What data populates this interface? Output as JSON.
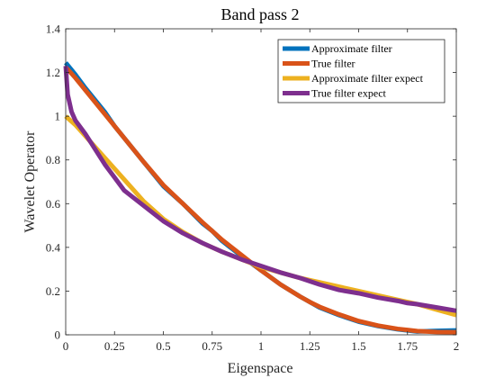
{
  "chart_data": {
    "type": "line",
    "title": "Band pass 2",
    "xlabel": "Eigenspace",
    "ylabel": "Wavelet Operator",
    "xlim": [
      0,
      2
    ],
    "ylim": [
      0,
      1.4
    ],
    "xticks": [
      0,
      0.25,
      0.5,
      0.75,
      1,
      1.25,
      1.5,
      1.75,
      2
    ],
    "xtick_labels": [
      "0",
      "0.25",
      "0.5",
      "0.75",
      "1",
      "1.25",
      "1.5",
      "1.75",
      "2"
    ],
    "yticks": [
      0,
      0.2,
      0.4,
      0.6,
      0.8,
      1,
      1.2,
      1.4
    ],
    "ytick_labels": [
      "0",
      "0.2",
      "0.4",
      "0.6",
      "0.8",
      "1",
      "1.2",
      "1.4"
    ],
    "grid": false,
    "legend_position": "top-right",
    "series": [
      {
        "name": "Approximate filter",
        "color": "#0072BD",
        "x": [
          0,
          0.05,
          0.1,
          0.2,
          0.25,
          0.3,
          0.4,
          0.5,
          0.6,
          0.7,
          0.75,
          0.8,
          0.9,
          1.0,
          1.1,
          1.2,
          1.25,
          1.3,
          1.4,
          1.5,
          1.6,
          1.7,
          1.75,
          1.8,
          1.9,
          2.0
        ],
        "y": [
          1.245,
          1.19,
          1.13,
          1.02,
          0.955,
          0.9,
          0.79,
          0.68,
          0.6,
          0.51,
          0.475,
          0.43,
          0.36,
          0.295,
          0.23,
          0.175,
          0.15,
          0.125,
          0.09,
          0.06,
          0.04,
          0.025,
          0.02,
          0.015,
          0.018,
          0.02
        ]
      },
      {
        "name": "True filter",
        "color": "#D95319",
        "x": [
          0,
          0.05,
          0.1,
          0.2,
          0.25,
          0.3,
          0.4,
          0.5,
          0.6,
          0.7,
          0.75,
          0.8,
          0.9,
          1.0,
          1.1,
          1.2,
          1.25,
          1.3,
          1.4,
          1.5,
          1.6,
          1.7,
          1.75,
          1.8,
          1.9,
          2.0
        ],
        "y": [
          1.225,
          1.175,
          1.12,
          1.01,
          0.955,
          0.9,
          0.79,
          0.685,
          0.6,
          0.515,
          0.475,
          0.435,
          0.365,
          0.295,
          0.23,
          0.175,
          0.15,
          0.128,
          0.093,
          0.063,
          0.042,
          0.027,
          0.022,
          0.017,
          0.013,
          0.012
        ]
      },
      {
        "name": "Approximate filter expect",
        "color": "#EDB120",
        "x": [
          0,
          0.05,
          0.1,
          0.2,
          0.25,
          0.3,
          0.4,
          0.5,
          0.6,
          0.7,
          0.75,
          0.8,
          0.9,
          1.0,
          1.1,
          1.2,
          1.25,
          1.3,
          1.4,
          1.5,
          1.6,
          1.7,
          1.75,
          1.8,
          1.9,
          2.0
        ],
        "y": [
          1.0,
          0.96,
          0.91,
          0.81,
          0.76,
          0.71,
          0.61,
          0.53,
          0.47,
          0.42,
          0.4,
          0.38,
          0.345,
          0.31,
          0.285,
          0.26,
          0.25,
          0.24,
          0.22,
          0.2,
          0.18,
          0.16,
          0.15,
          0.14,
          0.115,
          0.09
        ]
      },
      {
        "name": "True filter expect",
        "color": "#7E2F8E",
        "x": [
          0,
          0.01,
          0.03,
          0.05,
          0.1,
          0.15,
          0.2,
          0.25,
          0.3,
          0.4,
          0.5,
          0.6,
          0.7,
          0.75,
          0.8,
          0.9,
          1.0,
          1.1,
          1.2,
          1.25,
          1.3,
          1.4,
          1.5,
          1.6,
          1.7,
          1.75,
          1.8,
          1.9,
          2.0
        ],
        "y": [
          1.23,
          1.1,
          1.02,
          0.98,
          0.92,
          0.85,
          0.78,
          0.72,
          0.66,
          0.59,
          0.52,
          0.465,
          0.42,
          0.4,
          0.38,
          0.345,
          0.315,
          0.285,
          0.26,
          0.245,
          0.23,
          0.205,
          0.19,
          0.17,
          0.155,
          0.145,
          0.14,
          0.125,
          0.11
        ]
      }
    ]
  }
}
